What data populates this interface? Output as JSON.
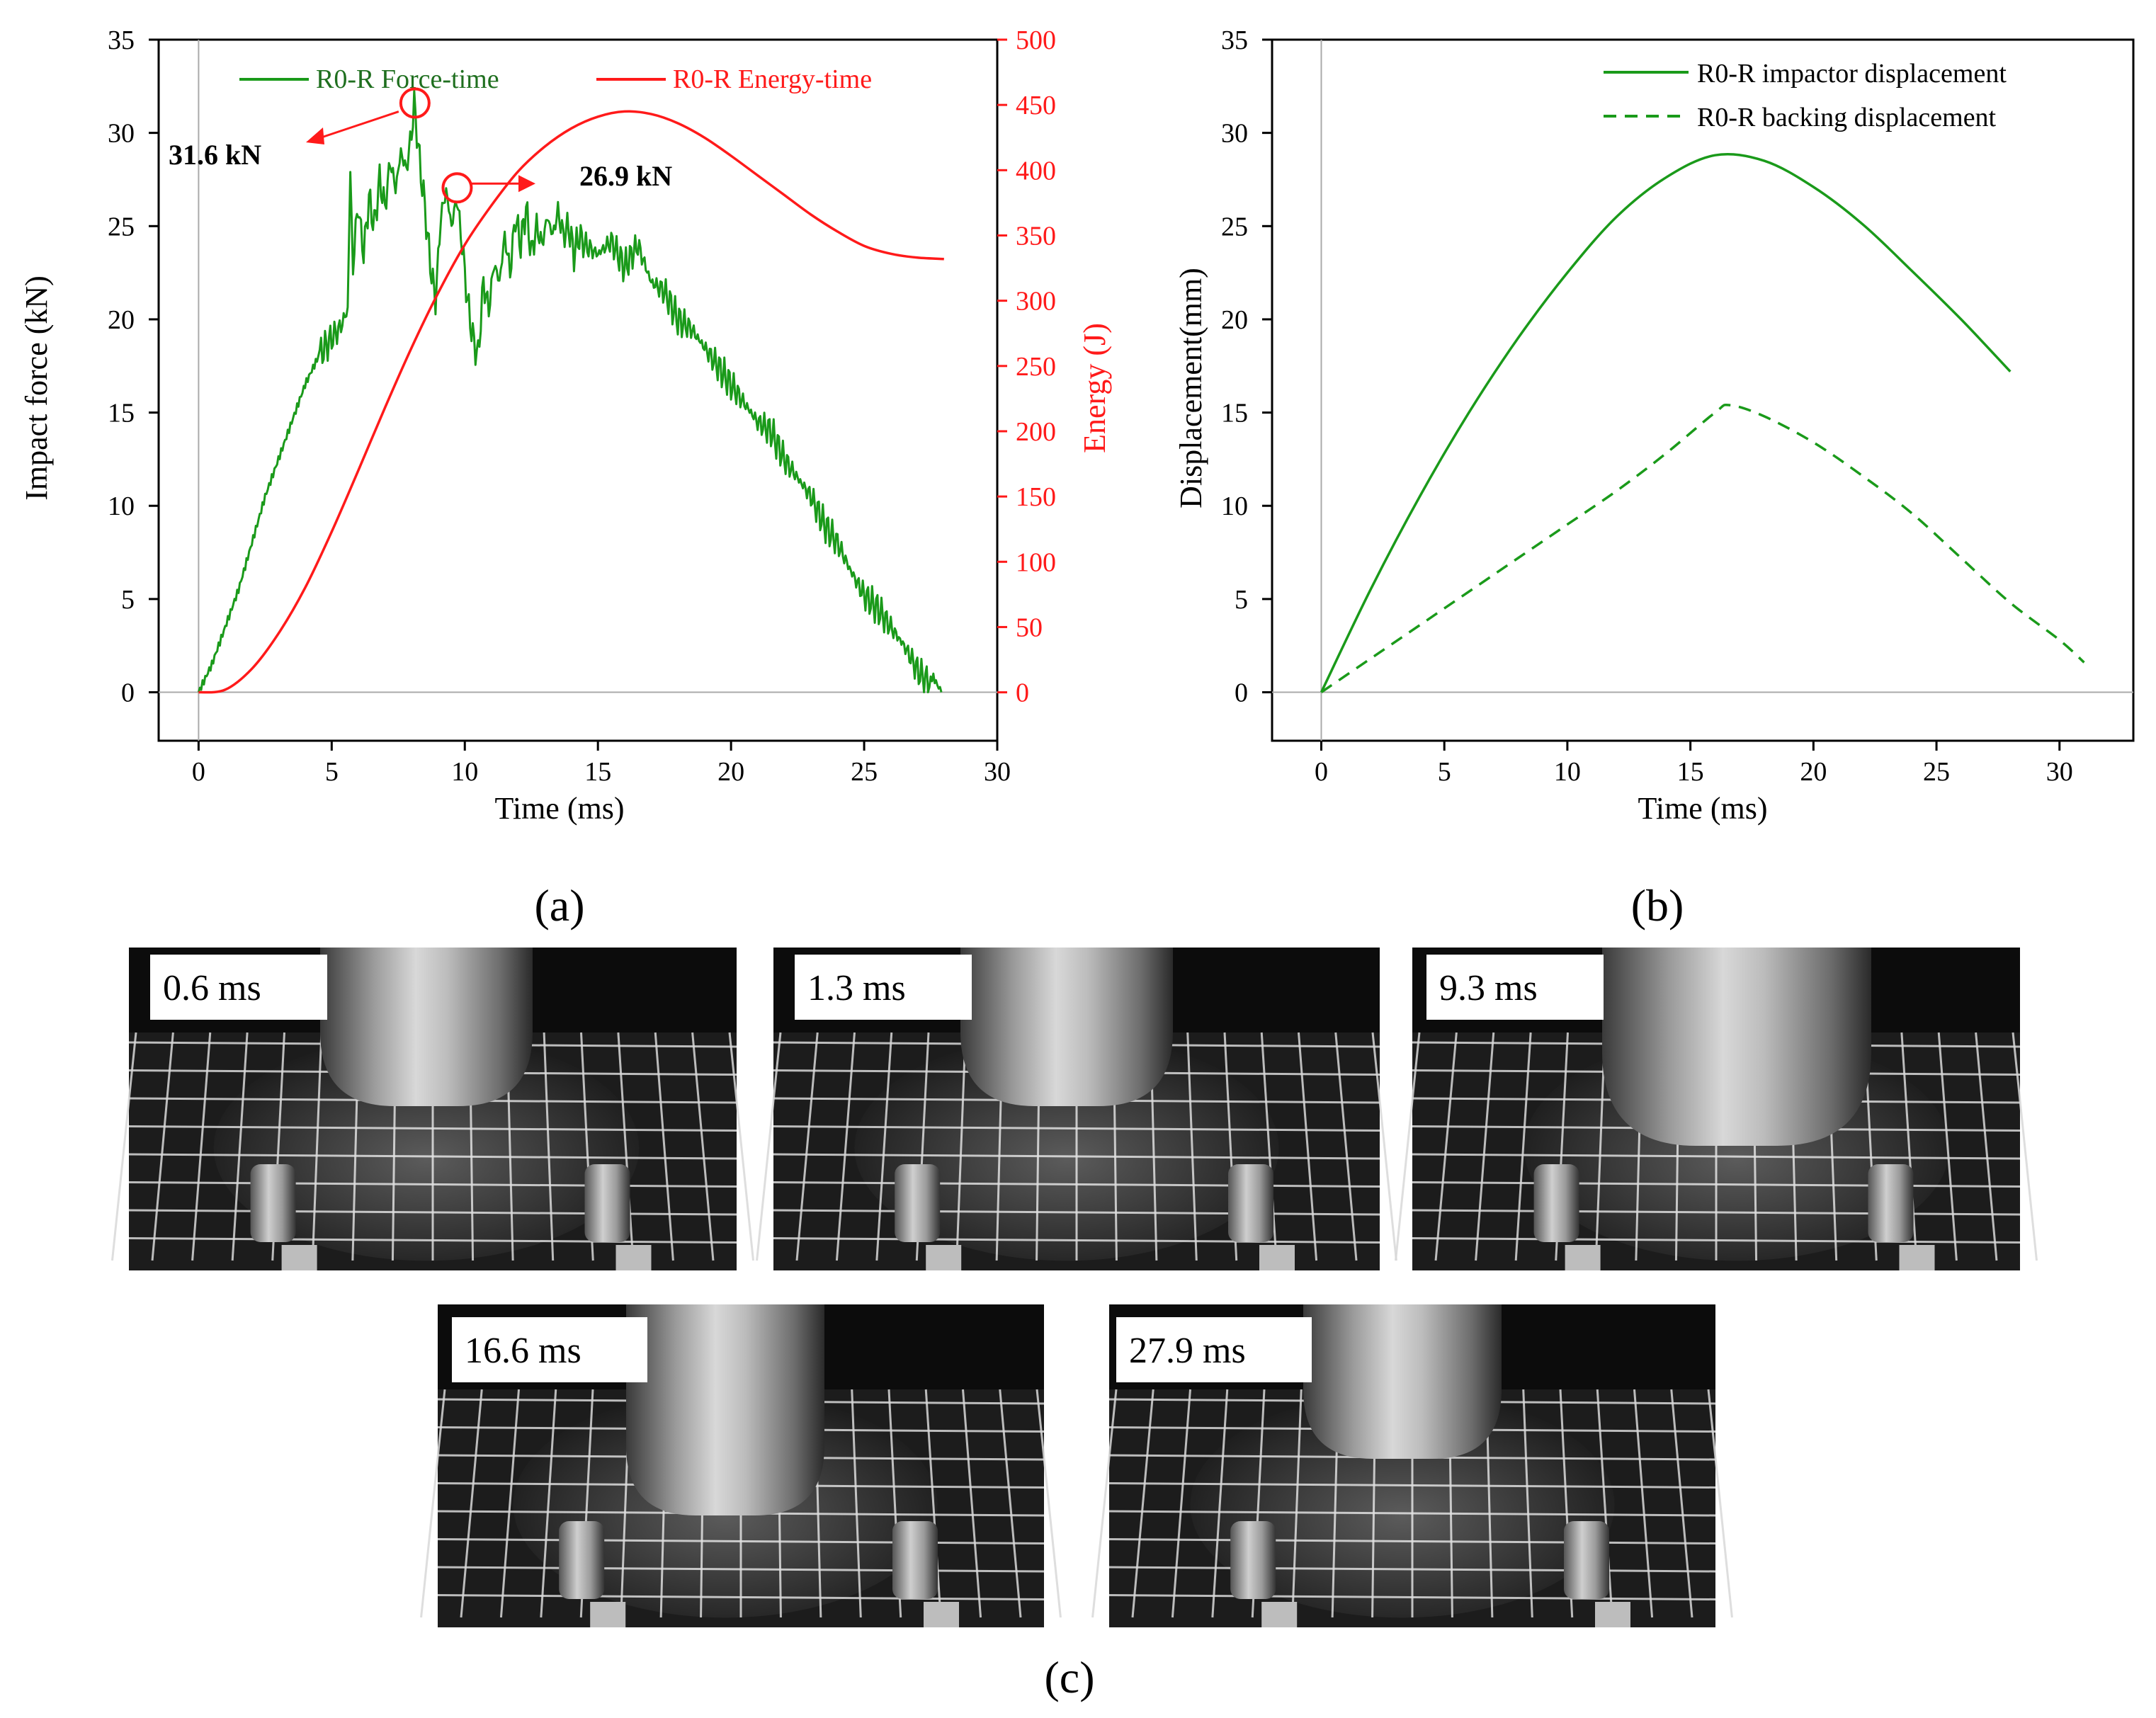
{
  "figure": {
    "panel_labels": [
      "(a)",
      "(b)",
      "(c)"
    ],
    "colors": {
      "force": "#1a9a1a",
      "energy": "#ff1a1a",
      "impactor": "#1a9a1a",
      "backing": "#1a9a1a",
      "axis": "#000000",
      "zero_line": "#aaaaaa"
    }
  },
  "chart_data": [
    {
      "id": "a",
      "type": "line",
      "title": "",
      "xlabel": "Time (ms)",
      "ylabel": "Impact force (kN)",
      "y2label": "Energy (J)",
      "xlim": [
        -1.5,
        30
      ],
      "ylim": [
        -2.6,
        35
      ],
      "y2lim": [
        -37.1,
        500
      ],
      "xticks": [
        0,
        5,
        10,
        15,
        20,
        25,
        30
      ],
      "yticks": [
        0,
        5,
        10,
        15,
        20,
        25,
        30,
        35
      ],
      "y2ticks": [
        0,
        50,
        100,
        150,
        200,
        250,
        300,
        350,
        400,
        450,
        500
      ],
      "legend_position": "top",
      "series": [
        {
          "name": "R0-R Force-time",
          "axis": "left",
          "x": [
            0,
            0.5,
            1,
            1.5,
            2,
            2.5,
            3,
            3.5,
            4,
            4.5,
            5,
            5.3,
            5.6,
            5.7,
            5.8,
            5.9,
            6.0,
            6.2,
            6.4,
            6.6,
            6.8,
            7.0,
            7.2,
            7.4,
            7.6,
            7.8,
            8.0,
            8.1,
            8.3,
            8.5,
            8.7,
            8.9,
            9.1,
            9.3,
            9.5,
            9.7,
            9.9,
            10.1,
            10.3,
            10.5,
            10.7,
            10.9,
            11.1,
            11.3,
            11.5,
            11.7,
            11.9,
            12.1,
            12.3,
            12.5,
            12.7,
            12.9,
            13.1,
            13.3,
            13.5,
            13.7,
            13.9,
            14.1,
            14.3,
            14.5,
            15.0,
            15.5,
            16.0,
            16.5,
            17.0,
            17.5,
            18.0,
            18.5,
            19.0,
            19.5,
            20.0,
            20.5,
            21.0,
            21.5,
            22.0,
            22.5,
            23.0,
            23.5,
            24.0,
            24.5,
            25.0,
            25.5,
            26.0,
            26.5,
            27.0,
            27.3,
            27.6,
            27.9
          ],
          "y": [
            0,
            1.5,
            3.5,
            5.5,
            8,
            10.5,
            12.5,
            14.5,
            16.5,
            18,
            19,
            19.5,
            20.5,
            28,
            22.5,
            25,
            26,
            23.5,
            26.5,
            25,
            27.5,
            26,
            28.5,
            27,
            29,
            28,
            30,
            31.6,
            28.5,
            26,
            23,
            21,
            25.5,
            26.9,
            25,
            26.5,
            24,
            21,
            19,
            18,
            22,
            20.5,
            23,
            22,
            24.5,
            22.5,
            25.5,
            24,
            26,
            23.5,
            25,
            24,
            25.5,
            24.5,
            25.8,
            24.5,
            25,
            23.5,
            24.5,
            24,
            23.5,
            24.2,
            22.8,
            24,
            22,
            21.5,
            20,
            19.5,
            18.5,
            17.5,
            16.5,
            15.5,
            14.5,
            14,
            12.5,
            11.5,
            10.5,
            9,
            8,
            6.5,
            5.2,
            4.5,
            3.5,
            2.5,
            1.2,
            0.6,
            0.8,
            0
          ]
        },
        {
          "name": "R0-R Energy-time",
          "axis": "right",
          "x": [
            0,
            1,
            2,
            3,
            4,
            5,
            6,
            7,
            8,
            9,
            10,
            11,
            12,
            13,
            14,
            15,
            16,
            17,
            18,
            19,
            20,
            21,
            22,
            23,
            24,
            25,
            26,
            27,
            28
          ],
          "y": [
            0,
            2,
            18,
            45,
            80,
            123,
            170,
            218,
            264,
            306,
            343,
            373,
            399,
            418,
            432,
            441,
            445,
            443,
            436,
            425,
            411,
            396,
            381,
            366,
            353,
            342,
            336,
            333,
            332
          ]
        }
      ],
      "annotations": [
        {
          "text": "31.6 kN",
          "x": 8.1,
          "y": 31.6
        },
        {
          "text": "26.9 kN",
          "x": 9.5,
          "y": 26.9
        }
      ]
    },
    {
      "id": "b",
      "type": "line",
      "title": "",
      "xlabel": "Time (ms)",
      "ylabel": "Displacement(mm)",
      "xlim": [
        -2,
        33
      ],
      "ylim": [
        -2.6,
        35
      ],
      "xticks": [
        0,
        5,
        10,
        15,
        20,
        25,
        30
      ],
      "yticks": [
        0,
        5,
        10,
        15,
        20,
        25,
        30,
        35
      ],
      "legend_position": "top-right",
      "series": [
        {
          "name": "R0-R impactor displacement",
          "style": "solid",
          "x": [
            0,
            2,
            4,
            6,
            8,
            10,
            12,
            14,
            16,
            18,
            20,
            22,
            24,
            26,
            28
          ],
          "y": [
            0,
            5.5,
            10.5,
            15.0,
            19.0,
            22.5,
            25.5,
            27.6,
            28.8,
            28.5,
            27.1,
            25.1,
            22.6,
            20.0,
            17.2
          ]
        },
        {
          "name": "R0-R backing displacement",
          "style": "dashed",
          "x": [
            0,
            2,
            4,
            6,
            8,
            10,
            12,
            14,
            16,
            16.6,
            18,
            20,
            22,
            24,
            26,
            28,
            30,
            31
          ],
          "y": [
            0,
            1.8,
            3.6,
            5.4,
            7.2,
            9.0,
            10.8,
            12.8,
            15.0,
            15.4,
            14.8,
            13.4,
            11.6,
            9.6,
            7.2,
            4.8,
            2.8,
            1.6
          ]
        }
      ]
    }
  ],
  "photos": [
    {
      "label": "0.6 ms"
    },
    {
      "label": "1.3 ms"
    },
    {
      "label": "9.3 ms"
    },
    {
      "label": "16.6 ms"
    },
    {
      "label": "27.9 ms"
    }
  ]
}
